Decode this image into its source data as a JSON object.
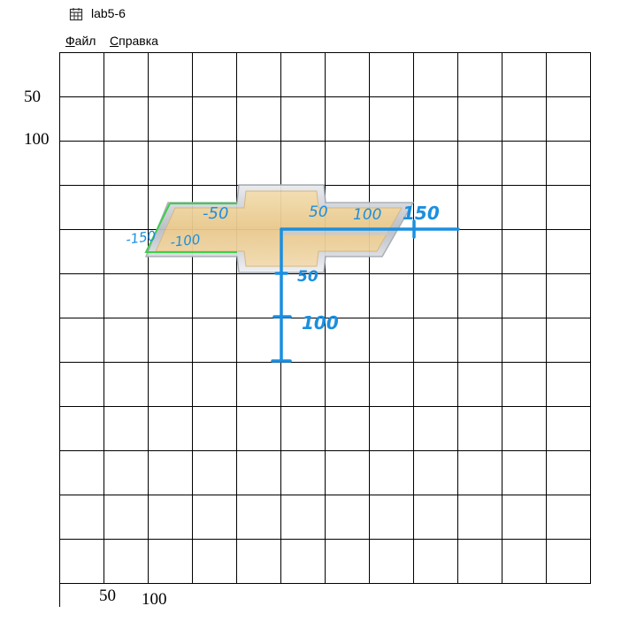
{
  "window": {
    "title": "lab5-6",
    "icon": "calendar-grid-icon"
  },
  "menu": {
    "file": {
      "first": "Ф",
      "rest": "айл"
    },
    "help": {
      "first": "С",
      "rest": "правка"
    }
  },
  "axes": {
    "y_labels": [
      "50",
      "100"
    ],
    "x_labels": [
      "50",
      "100"
    ]
  },
  "annotations": [
    "-150",
    "-100",
    "-50",
    "50",
    "100",
    "150",
    "50",
    "100"
  ],
  "colors": {
    "grid": "#000000",
    "annotation_blue": "#1a8fe0",
    "annotation_green": "#3ecf4a",
    "logo_gold": "#e8c98a",
    "logo_silver": "#c9ccd2"
  }
}
